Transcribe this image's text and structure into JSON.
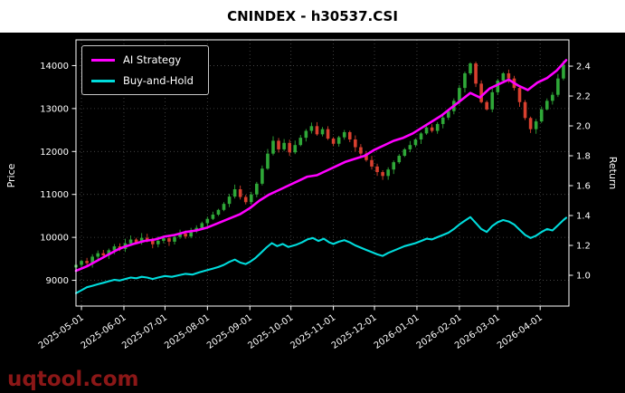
{
  "title": "CNINDEX - h30537.CSI",
  "watermark": "uqtool.com",
  "colors": {
    "page": "#ffffff",
    "plot_background": "#000000",
    "candle_up": "#2fa838",
    "candle_down": "#d8402f",
    "ai_strategy": "#ff00ff",
    "buy_and_hold": "#00dcdc",
    "grid": "#4d4d4d",
    "axis": "#ffffff",
    "watermark": "#8b1717"
  },
  "chart_data": {
    "type": "candlestick+line",
    "title": "CNINDEX - h30537.CSI",
    "grid": "dotted",
    "x_domain": [
      0,
      360
    ],
    "x_tick_days": [
      4,
      35,
      65,
      96,
      127,
      157,
      188,
      218,
      249,
      280,
      308,
      339
    ],
    "x_tick_labels": [
      "2025-05-01",
      "2025-06-01",
      "2025-07-01",
      "2025-08-01",
      "2025-09-01",
      "2025-10-01",
      "2025-11-01",
      "2025-12-01",
      "2026-01-01",
      "2026-02-01",
      "2026-03-01",
      "2026-04-01"
    ],
    "left_axis": {
      "label": "Price",
      "domain": [
        8400,
        14600
      ],
      "ticks": [
        9000,
        10000,
        11000,
        12000,
        13000,
        14000
      ]
    },
    "right_axis": {
      "label": "Return",
      "domain": [
        0.794,
        2.576
      ],
      "ticks": [
        1.0,
        1.2,
        1.4,
        1.6,
        1.8,
        2.0,
        2.2,
        2.4
      ]
    },
    "price_candles": {
      "axis": "left",
      "start_day": 0,
      "step_days": 4,
      "first_open": 9300,
      "closes": [
        9360,
        9450,
        9400,
        9550,
        9630,
        9580,
        9700,
        9790,
        9730,
        9860,
        9950,
        9880,
        9990,
        9920,
        9840,
        9920,
        9980,
        9900,
        10010,
        10090,
        10020,
        10140,
        10220,
        10330,
        10430,
        10530,
        10640,
        10780,
        10950,
        11120,
        10940,
        10820,
        11000,
        11250,
        11600,
        11950,
        12250,
        12050,
        12200,
        11980,
        12150,
        12320,
        12480,
        12590,
        12400,
        12520,
        12300,
        12180,
        12330,
        12450,
        12280,
        12100,
        11950,
        11800,
        11650,
        11520,
        11430,
        11580,
        11750,
        11900,
        12050,
        12150,
        12280,
        12420,
        12560,
        12480,
        12640,
        12790,
        12940,
        13180,
        13480,
        13820,
        14050,
        13580,
        13150,
        12980,
        13380,
        13650,
        13820,
        13700,
        13480,
        13150,
        12780,
        12520,
        12700,
        12980,
        13180,
        13320,
        13700,
        14020
      ]
    },
    "series": [
      {
        "name": "AI Strategy",
        "axis": "right",
        "color_key": "ai_strategy",
        "points": [
          [
            0,
            1.03
          ],
          [
            8,
            1.06
          ],
          [
            16,
            1.1
          ],
          [
            24,
            1.14
          ],
          [
            30,
            1.17
          ],
          [
            35,
            1.19
          ],
          [
            42,
            1.21
          ],
          [
            50,
            1.23
          ],
          [
            58,
            1.24
          ],
          [
            65,
            1.26
          ],
          [
            72,
            1.27
          ],
          [
            80,
            1.29
          ],
          [
            88,
            1.3
          ],
          [
            96,
            1.32
          ],
          [
            104,
            1.35
          ],
          [
            112,
            1.38
          ],
          [
            120,
            1.41
          ],
          [
            127,
            1.45
          ],
          [
            134,
            1.5
          ],
          [
            141,
            1.54
          ],
          [
            148,
            1.57
          ],
          [
            155,
            1.6
          ],
          [
            162,
            1.63
          ],
          [
            169,
            1.66
          ],
          [
            176,
            1.67
          ],
          [
            183,
            1.7
          ],
          [
            190,
            1.73
          ],
          [
            197,
            1.76
          ],
          [
            204,
            1.78
          ],
          [
            211,
            1.8
          ],
          [
            218,
            1.84
          ],
          [
            225,
            1.87
          ],
          [
            232,
            1.9
          ],
          [
            239,
            1.92
          ],
          [
            246,
            1.95
          ],
          [
            253,
            1.99
          ],
          [
            260,
            2.03
          ],
          [
            267,
            2.07
          ],
          [
            274,
            2.12
          ],
          [
            281,
            2.17
          ],
          [
            288,
            2.22
          ],
          [
            295,
            2.19
          ],
          [
            302,
            2.25
          ],
          [
            309,
            2.28
          ],
          [
            316,
            2.31
          ],
          [
            323,
            2.27
          ],
          [
            330,
            2.24
          ],
          [
            337,
            2.29
          ],
          [
            344,
            2.32
          ],
          [
            351,
            2.37
          ],
          [
            358,
            2.44
          ]
        ]
      },
      {
        "name": "Buy-and-Hold",
        "axis": "right",
        "color_key": "buy_and_hold",
        "points": [
          [
            0,
            0.88
          ],
          [
            4,
            0.9
          ],
          [
            8,
            0.92
          ],
          [
            12,
            0.93
          ],
          [
            16,
            0.94
          ],
          [
            20,
            0.95
          ],
          [
            24,
            0.96
          ],
          [
            28,
            0.97
          ],
          [
            32,
            0.965
          ],
          [
            36,
            0.975
          ],
          [
            40,
            0.985
          ],
          [
            44,
            0.98
          ],
          [
            48,
            0.99
          ],
          [
            52,
            0.985
          ],
          [
            56,
            0.975
          ],
          [
            60,
            0.985
          ],
          [
            65,
            0.995
          ],
          [
            70,
            0.99
          ],
          [
            75,
            1.0
          ],
          [
            80,
            1.01
          ],
          [
            85,
            1.005
          ],
          [
            90,
            1.02
          ],
          [
            96,
            1.035
          ],
          [
            100,
            1.045
          ],
          [
            104,
            1.055
          ],
          [
            108,
            1.07
          ],
          [
            112,
            1.09
          ],
          [
            116,
            1.105
          ],
          [
            120,
            1.085
          ],
          [
            124,
            1.075
          ],
          [
            127,
            1.09
          ],
          [
            131,
            1.115
          ],
          [
            135,
            1.15
          ],
          [
            139,
            1.185
          ],
          [
            143,
            1.215
          ],
          [
            147,
            1.195
          ],
          [
            151,
            1.21
          ],
          [
            155,
            1.19
          ],
          [
            161,
            1.205
          ],
          [
            165,
            1.22
          ],
          [
            169,
            1.24
          ],
          [
            173,
            1.25
          ],
          [
            177,
            1.23
          ],
          [
            181,
            1.245
          ],
          [
            185,
            1.22
          ],
          [
            188,
            1.21
          ],
          [
            192,
            1.225
          ],
          [
            196,
            1.235
          ],
          [
            200,
            1.22
          ],
          [
            204,
            1.2
          ],
          [
            208,
            1.185
          ],
          [
            212,
            1.17
          ],
          [
            216,
            1.155
          ],
          [
            220,
            1.14
          ],
          [
            224,
            1.13
          ],
          [
            228,
            1.15
          ],
          [
            232,
            1.165
          ],
          [
            236,
            1.18
          ],
          [
            240,
            1.195
          ],
          [
            244,
            1.205
          ],
          [
            248,
            1.215
          ],
          [
            252,
            1.23
          ],
          [
            256,
            1.245
          ],
          [
            260,
            1.24
          ],
          [
            264,
            1.255
          ],
          [
            268,
            1.27
          ],
          [
            272,
            1.285
          ],
          [
            276,
            1.31
          ],
          [
            280,
            1.34
          ],
          [
            284,
            1.365
          ],
          [
            288,
            1.39
          ],
          [
            292,
            1.35
          ],
          [
            296,
            1.31
          ],
          [
            300,
            1.29
          ],
          [
            304,
            1.33
          ],
          [
            308,
            1.355
          ],
          [
            312,
            1.37
          ],
          [
            316,
            1.36
          ],
          [
            320,
            1.34
          ],
          [
            324,
            1.305
          ],
          [
            328,
            1.27
          ],
          [
            332,
            1.25
          ],
          [
            336,
            1.265
          ],
          [
            340,
            1.29
          ],
          [
            344,
            1.31
          ],
          [
            348,
            1.3
          ],
          [
            352,
            1.335
          ],
          [
            356,
            1.37
          ],
          [
            358,
            1.385
          ]
        ]
      }
    ],
    "legend": {
      "position": "upper-left",
      "entries": [
        "AI Strategy",
        "Buy-and-Hold"
      ]
    }
  }
}
